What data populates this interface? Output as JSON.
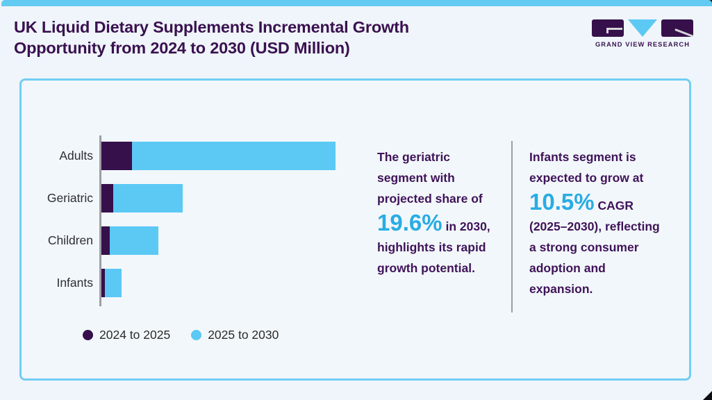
{
  "page": {
    "title": "UK Liquid Dietary Supplements Incremental Growth Opportunity from 2024 to 2030 (USD Million)"
  },
  "logo": {
    "brand": "GRAND VIEW RESEARCH"
  },
  "chart_data": {
    "type": "bar",
    "orientation": "horizontal",
    "stacked": true,
    "title": "UK Liquid Dietary Supplements Incremental Growth Opportunity from 2024 to 2030 (USD Million)",
    "categories": [
      "Adults",
      "Geriatric",
      "Children",
      "Infants"
    ],
    "series": [
      {
        "name": "2024 to 2025",
        "color": "#36104B",
        "values": [
          44,
          17,
          12,
          5
        ]
      },
      {
        "name": "2025 to 2030",
        "color": "#5BC9F4",
        "values": [
          293,
          100,
          70,
          24
        ]
      }
    ],
    "value_axis": {
      "tick_labels_visible": false,
      "units_note": "axis unlabeled; values are relative estimates from bar lengths"
    },
    "grid": false,
    "legend_position": "bottom-left"
  },
  "insights": [
    {
      "text_before": "The geriatric segment with projected share of",
      "stat": "19.6%",
      "text_after": "in 2030, highlights its rapid growth potential."
    },
    {
      "text_before": "Infants segment is expected to grow at",
      "stat": "10.5%",
      "text_after": "CAGR (2025–2030), reflecting a strong consumer adoption and expansion."
    }
  ],
  "colors": {
    "accent_strip": "#63CAF2",
    "card_border": "#71CEF3",
    "series_dark_purple": "#36104B",
    "series_light_blue": "#5BC9F4",
    "stat_blue": "#29ACE3",
    "title_purple": "#3A1150",
    "insight_purple": "#3F1459",
    "page_bg": "#EFF5FA"
  }
}
